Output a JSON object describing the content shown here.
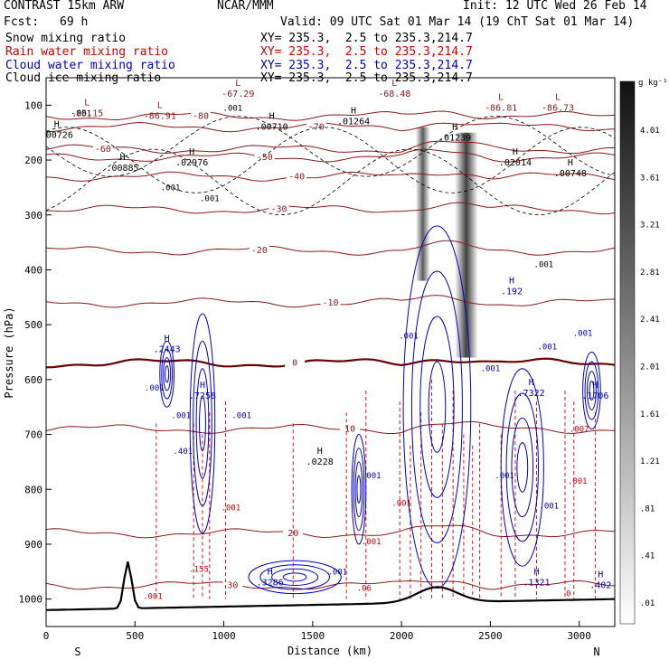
{
  "header": {
    "title_left": "CONTRAST 15km ARW",
    "title_center": "NCAR/MMM",
    "init": "Init: 12 UTC Wed 26 Feb 14",
    "fcst_label": "Fcst:",
    "fcst_value": "69 h",
    "valid": "Valid: 09 UTC Sat 01 Mar 14 (19 ChT Sat 01 Mar 14)"
  },
  "fields": [
    {
      "label": "Snow mixing ratio",
      "xy": "XY= 235.3,  2.5 to 235.3,214.7",
      "color": "#000000"
    },
    {
      "label": "Rain water mixing ratio",
      "xy": "XY= 235.3,  2.5 to 235.3,214.7",
      "color": "#d00000"
    },
    {
      "label": "Cloud water mixing ratio",
      "xy": "XY= 235.3,  2.5 to 235.3,214.7",
      "color": "#0000c8"
    },
    {
      "label": "Cloud ice mixing ratio",
      "xy": "XY= 235.3,  2.5 to 235.3,214.7",
      "color": "#000000"
    }
  ],
  "colorbar": {
    "unit": "g kg⁻¹",
    "labels": [
      "4.01",
      "3.61",
      "3.21",
      "2.81",
      "2.41",
      "2.01",
      "1.61",
      "1.21",
      ".81",
      ".41",
      ".01"
    ]
  },
  "chart_data": {
    "type": "contour",
    "xlabel": "Distance (km)",
    "ylabel": "Pressure (hPa)",
    "xlim": [
      0,
      3200
    ],
    "ylim": [
      1050,
      50
    ],
    "xticks": [
      0,
      500,
      1000,
      1500,
      2000,
      2500,
      3000
    ],
    "xtick_labels": [
      "0",
      "500",
      "1000",
      "1500",
      "2000",
      "2500",
      "3000"
    ],
    "yticks": [
      100,
      200,
      300,
      400,
      500,
      600,
      700,
      800,
      900,
      1000
    ],
    "ytick_labels": [
      "100",
      "200",
      "300",
      "400",
      "500",
      "600",
      "700",
      "800",
      "900",
      "1000"
    ],
    "endpoint_labels": {
      "left": "S",
      "right": "N"
    },
    "temperature_isotherms": [
      {
        "value": "-80",
        "label": "-80",
        "x": 870,
        "p": 120
      },
      {
        "value": "-70",
        "label": "-70",
        "x": 1520,
        "p": 140
      },
      {
        "value": "-60",
        "label": "-60",
        "x": 320,
        "p": 180
      },
      {
        "value": "-50",
        "label": "-50",
        "x": 1230,
        "p": 195
      },
      {
        "value": "-40",
        "label": "-40",
        "x": 1410,
        "p": 230
      },
      {
        "value": "-30",
        "label": "-30",
        "x": 1310,
        "p": 290
      },
      {
        "value": "-20",
        "label": "-20",
        "x": 1200,
        "p": 365
      },
      {
        "value": "-10",
        "label": "-10",
        "x": 1600,
        "p": 460
      },
      {
        "value": "0",
        "label": "0",
        "x": 1400,
        "p": 570
      },
      {
        "value": "10",
        "label": "10",
        "x": 1710,
        "p": 690
      },
      {
        "value": "20",
        "label": "20",
        "x": 1390,
        "p": 880
      },
      {
        "value": "30",
        "label": "30",
        "x": 1050,
        "p": 975
      }
    ],
    "min_labels": [
      {
        "label": "L",
        "value": "-85.15",
        "x": 230,
        "p": 110
      },
      {
        "label": "L",
        "value": "-86.91",
        "x": 640,
        "p": 115
      },
      {
        "label": "L",
        "value": "-67.29",
        "x": 1080,
        "p": 75
      },
      {
        "label": "L",
        "value": "-68.48",
        "x": 1960,
        "p": 75
      },
      {
        "label": "L",
        "value": "-86.81",
        "x": 2560,
        "p": 100
      },
      {
        "label": "L",
        "value": "-86.73",
        "x": 2880,
        "p": 100
      }
    ],
    "max_labels": [
      {
        "label": "H",
        "value": ".00726",
        "x": 60,
        "p": 150
      },
      {
        "label": "H",
        "value": ".00885",
        "x": 430,
        "p": 210
      },
      {
        "label": "H",
        "value": ".02976",
        "x": 820,
        "p": 200
      },
      {
        "label": "H",
        "value": ".00710",
        "x": 1270,
        "p": 135
      },
      {
        "label": "H",
        "value": ".01264",
        "x": 1730,
        "p": 125
      },
      {
        "label": "H",
        "value": ".01239",
        "x": 2300,
        "p": 155
      },
      {
        "label": "H",
        "value": ".02014",
        "x": 2640,
        "p": 200
      },
      {
        "label": "H",
        "value": ".00748",
        "x": 2950,
        "p": 220
      },
      {
        "label": "H",
        "value": ".2443",
        "x": 680,
        "p": 540
      },
      {
        "label": "H",
        "value": ".7258",
        "x": 880,
        "p": 625
      },
      {
        "label": "H",
        "value": ".0228",
        "x": 1540,
        "p": 745
      },
      {
        "label": "H",
        "value": ".3286",
        "x": 1260,
        "p": 965
      },
      {
        "label": "H",
        "value": ".192",
        "x": 2620,
        "p": 435
      },
      {
        "label": "H",
        "value": ".7322",
        "x": 2730,
        "p": 620
      },
      {
        "label": "H",
        "value": ".1706",
        "x": 3090,
        "p": 625
      },
      {
        "label": "H",
        "value": ".1321",
        "x": 2760,
        "p": 965
      },
      {
        "label": "H",
        "value": ".402",
        "x": 3120,
        "p": 970
      }
    ],
    "contour_values": [
      {
        "value": ".001",
        "x": 200,
        "p": 120,
        "color": "#000000"
      },
      {
        "value": ".001",
        "x": 1050,
        "p": 110,
        "color": "#000000"
      },
      {
        "value": ".001",
        "x": 700,
        "p": 255,
        "color": "#000000"
      },
      {
        "value": ".001",
        "x": 920,
        "p": 275,
        "color": "#000000"
      },
      {
        "value": ".001",
        "x": 2800,
        "p": 395,
        "color": "#000000"
      },
      {
        "value": ".001",
        "x": 3020,
        "p": 520,
        "color": "#0000c8"
      },
      {
        "value": ".001",
        "x": 2820,
        "p": 545,
        "color": "#0000c8"
      },
      {
        "value": ".001",
        "x": 2040,
        "p": 525,
        "color": "#0000c8"
      },
      {
        "value": ".001",
        "x": 610,
        "p": 620,
        "color": "#0000c8"
      },
      {
        "value": ".001",
        "x": 760,
        "p": 670,
        "color": "#0000c8"
      },
      {
        "value": ".001",
        "x": 1100,
        "p": 670,
        "color": "#0000c8"
      },
      {
        "value": ".401",
        "x": 770,
        "p": 735,
        "color": "#0000c8"
      },
      {
        "value": ".001",
        "x": 1830,
        "p": 780,
        "color": "#0000c8"
      },
      {
        "value": ".001",
        "x": 2500,
        "p": 585,
        "color": "#0000c8"
      },
      {
        "value": ".001",
        "x": 2580,
        "p": 780,
        "color": "#0000c8"
      },
      {
        "value": ".001",
        "x": 2830,
        "p": 835,
        "color": "#0000c8"
      },
      {
        "value": ".001",
        "x": 1640,
        "p": 955,
        "color": "#0000c8"
      },
      {
        "value": ".001",
        "x": 1040,
        "p": 838,
        "color": "#d00000"
      },
      {
        "value": ".001",
        "x": 2000,
        "p": 830,
        "color": "#d00000"
      },
      {
        "value": ".001",
        "x": 1830,
        "p": 900,
        "color": "#d00000"
      },
      {
        "value": ".001",
        "x": 600,
        "p": 1000,
        "color": "#d00000"
      },
      {
        "value": ".007",
        "x": 3000,
        "p": 695,
        "color": "#d00000"
      },
      {
        "value": ".001",
        "x": 2990,
        "p": 790,
        "color": "#d00000"
      },
      {
        "value": ".155",
        "x": 860,
        "p": 950,
        "color": "#d00000"
      },
      {
        "value": ".06",
        "x": 1790,
        "p": 985,
        "color": "#d00000"
      },
      {
        "value": "0",
        "x": 2940,
        "p": 995,
        "color": "#d00000"
      }
    ]
  }
}
